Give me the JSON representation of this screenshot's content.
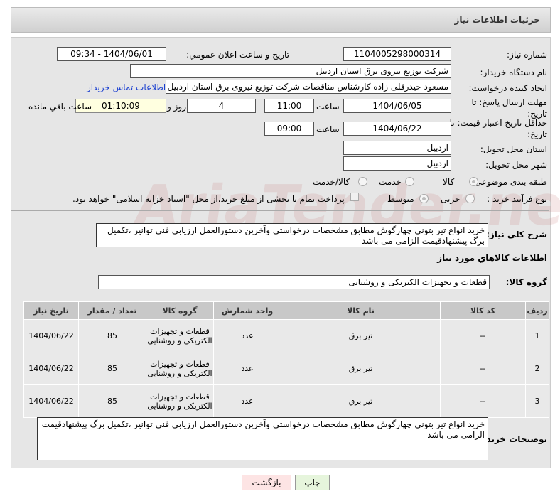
{
  "title": "جزئیات اطلاعات نیاز",
  "watermark": "AriaTender.net",
  "form": {
    "need_no_label": "شماره نیاز:",
    "need_no": "1104005298000314",
    "announce_label": "تاریخ و ساعت اعلان عمومي:",
    "announce": "1404/06/01 - 09:34",
    "buyer_label": "نام دستگاه خريدار:",
    "buyer": "شرکت توزیع نیروی برق استان اردبیل",
    "creator_label": "ایجاد کننده درخواست:",
    "creator": "مسعود حیدرقلی زاده کارشناس مناقصات شرکت توزیع نیروی برق استان اردبیل",
    "contact_link": "اطلاعات تماس خریدار",
    "deadline_label": "مهلت ارسال پاسخ: تا تاریخ:",
    "deadline_date": "1404/06/05",
    "hour_label": "ساعت",
    "deadline_time": "11:00",
    "days": "4",
    "days_label": "روز و",
    "remaining": "01:10:09",
    "remaining_label": "ساعت باقي مانده",
    "validity_label": "حداقل تاریخ اعتبار قیمت: تا تاریخ:",
    "validity_date": "1404/06/22",
    "validity_time": "09:00",
    "province_label": "استان محل تحویل:",
    "province": "اردبیل",
    "city_label": "شهر محل تحویل:",
    "city": "اردبیل",
    "category_label": "طبقه بندی موضوعی:",
    "category_options": [
      "کالا",
      "خدمت",
      "کالا/خدمت"
    ],
    "category_selected": "کالا",
    "process_label": "نوع فرآیند خرید :",
    "process_options": [
      "جزیی",
      "متوسط"
    ],
    "process_selected": "متوسط",
    "payment_note": "پرداخت تمام یا بخشی از مبلغ خرید،از محل \"اسناد خزانه اسلامی\" خواهد بود.",
    "summary_label": "شرح کلي نیاز:",
    "summary": "خرید انواع تیر بتونی چهارگوش مطابق مشخصات درخواستی وآخرین دستورالعمل ارزیابی فنی توانیر ،تکمیل برگ پیشنهادقیمت الزامی می باشد",
    "items_heading": "اطلاعات کالاهاي مورد نياز",
    "group_label": "گروه کالا:",
    "group": "قطعات و تجهیزات الکتریکی و روشنایی"
  },
  "table": {
    "headers": [
      "ردیف",
      "کد کالا",
      "نام کالا",
      "واحد شمارش",
      "گروه کالا",
      "تعداد / مقدار",
      "تاریخ نیاز"
    ],
    "rows": [
      [
        "1",
        "--",
        "تیر برق",
        "عدد",
        "قطعات و تجهیزات الکتریکی و روشنایی",
        "85",
        "1404/06/22"
      ],
      [
        "2",
        "--",
        "تیر برق",
        "عدد",
        "قطعات و تجهیزات الکتریکی و روشنایی",
        "85",
        "1404/06/22"
      ],
      [
        "3",
        "--",
        "تیر برق",
        "عدد",
        "قطعات و تجهیزات الکتریکی و روشنایی",
        "85",
        "1404/06/22"
      ]
    ]
  },
  "notes_label": "توضیحات خریدار:",
  "notes": "خرید انواع تیر بتونی چهارگوش مطابق مشخصات درخواستی وآخرین دستورالعمل ارزیابی فنی توانیر ،تکمیل برگ پیشنهادقیمت الزامی می باشد",
  "buttons": {
    "print": "چاپ",
    "back": "بازگشت"
  }
}
